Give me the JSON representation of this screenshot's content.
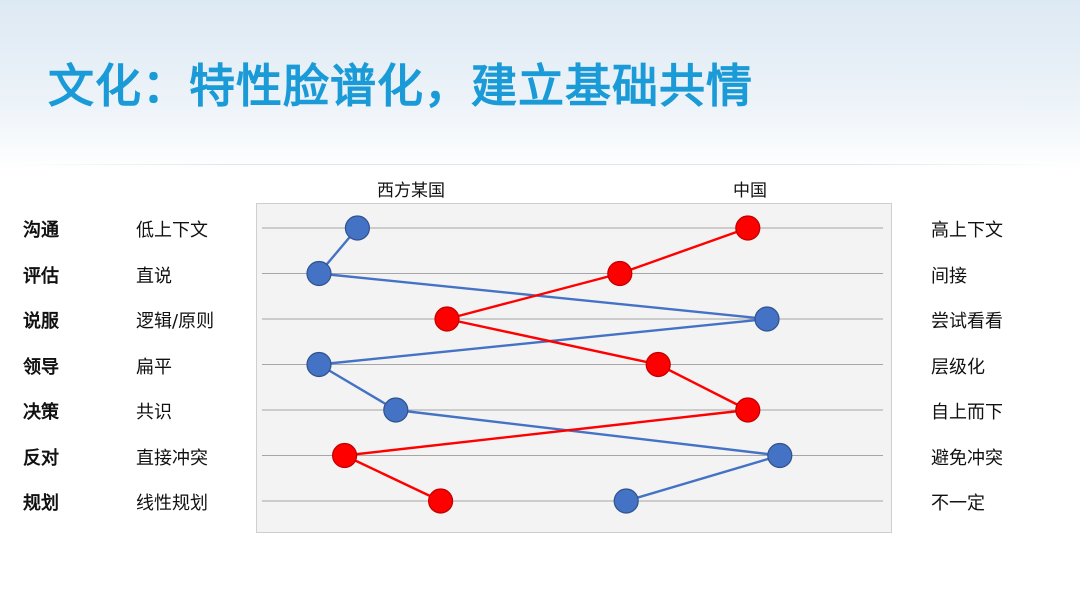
{
  "header": {
    "title": "文化：特性脸谱化，建立基础共情"
  },
  "chart_data": {
    "type": "line",
    "x_range": [
      0,
      100
    ],
    "categories": [
      "沟通",
      "评估",
      "说服",
      "领导",
      "决策",
      "反对",
      "规划"
    ],
    "left_labels": [
      "低上下文",
      "直说",
      "逻辑/原则",
      "扁平",
      "共识",
      "直接冲突",
      "线性规划"
    ],
    "right_labels": [
      "高上下文",
      "间接",
      "尝试看看",
      "层级化",
      "自上而下",
      "避免冲突",
      "不一定"
    ],
    "column_labels": {
      "left": "西方某国",
      "right": "中国"
    },
    "series": [
      {
        "color": "#4472c4",
        "values": [
          16,
          10,
          80,
          10,
          22,
          82,
          58
        ]
      },
      {
        "color": "#ff0000",
        "values": [
          77,
          57,
          30,
          63,
          77,
          14,
          29
        ]
      }
    ]
  }
}
